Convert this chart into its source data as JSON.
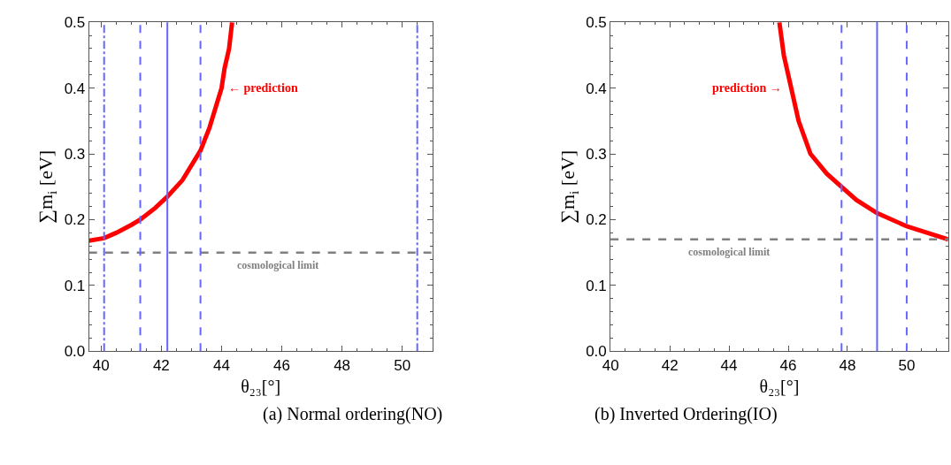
{
  "chart_data": [
    {
      "type": "line",
      "xlabel": "θ₂₃[°]",
      "ylabel": "∑m$_{i}$ [eV]",
      "xlim": [
        39.6,
        51.0
      ],
      "xticks": [
        40,
        42,
        44,
        46,
        48,
        50
      ],
      "ylim": [
        0,
        0.5
      ],
      "yticks": [
        {
          "value": 0,
          "label": "0.0"
        },
        0.1,
        0.2,
        0.3,
        0.4,
        0.5
      ],
      "line_style": "solid",
      "marker": "none",
      "series": [
        {
          "color": "#ff0000",
          "x": [
            39.6,
            40.1,
            40.5,
            41.0,
            41.3,
            41.8,
            42.2,
            42.7,
            43.3,
            43.6,
            43.8,
            44.0,
            44.1,
            44.25,
            44.35
          ],
          "values": [
            0.168,
            0.172,
            0.18,
            0.192,
            0.2,
            0.218,
            0.235,
            0.26,
            0.305,
            0.34,
            0.37,
            0.4,
            0.43,
            0.46,
            0.5
          ]
        }
      ],
      "ref_lines": [
        {
          "axis": "y",
          "value": 0.15,
          "color": "#808080",
          "line_style": "dashed",
          "label": "cosmological limit"
        },
        {
          "axis": "x",
          "value": 40.1,
          "color": "#6666ff",
          "line_style": "dashdot"
        },
        {
          "axis": "x",
          "value": 41.3,
          "color": "#6666ff",
          "line_style": "dashed"
        },
        {
          "axis": "x",
          "value": 42.2,
          "color": "#6666ff",
          "line_style": "solid"
        },
        {
          "axis": "x",
          "value": 43.3,
          "color": "#6666ff",
          "line_style": "dashed"
        },
        {
          "axis": "x",
          "value": 50.5,
          "color": "#6666ff",
          "line_style": "dashdot"
        }
      ],
      "annotations": [
        "← prediction",
        "(a) Normal ordering(NO)"
      ]
    },
    {
      "type": "line",
      "xlabel": "θ₂₃[°]",
      "ylabel": "∑m$_{i}$ [eV]",
      "xlim": [
        40,
        51.4
      ],
      "xticks": [
        40,
        42,
        44,
        46,
        48,
        50
      ],
      "ylim": [
        0,
        0.5
      ],
      "yticks": [
        {
          "value": 0,
          "label": "0.0"
        },
        0.1,
        0.2,
        0.3,
        0.4,
        0.5
      ],
      "line_style": "solid",
      "marker": "none",
      "series": [
        {
          "color": "#ff0000",
          "x": [
            45.7,
            45.85,
            46.1,
            46.35,
            46.75,
            47.3,
            47.8,
            48.3,
            49.0,
            50.0,
            50.7,
            51.4
          ],
          "values": [
            0.5,
            0.45,
            0.4,
            0.35,
            0.3,
            0.27,
            0.25,
            0.23,
            0.21,
            0.19,
            0.18,
            0.17
          ]
        }
      ],
      "ref_lines": [
        {
          "axis": "y",
          "value": 0.17,
          "color": "#808080",
          "line_style": "dashed",
          "label": "cosmological limit"
        },
        {
          "axis": "x",
          "value": 47.8,
          "color": "#6666ff",
          "line_style": "dashed"
        },
        {
          "axis": "x",
          "value": 49.0,
          "color": "#6666ff",
          "line_style": "solid"
        },
        {
          "axis": "x",
          "value": 50.0,
          "color": "#6666ff",
          "line_style": "dashed"
        }
      ],
      "annotations": [
        "prediction →",
        "(b) Inverted Ordering(IO)"
      ]
    }
  ]
}
